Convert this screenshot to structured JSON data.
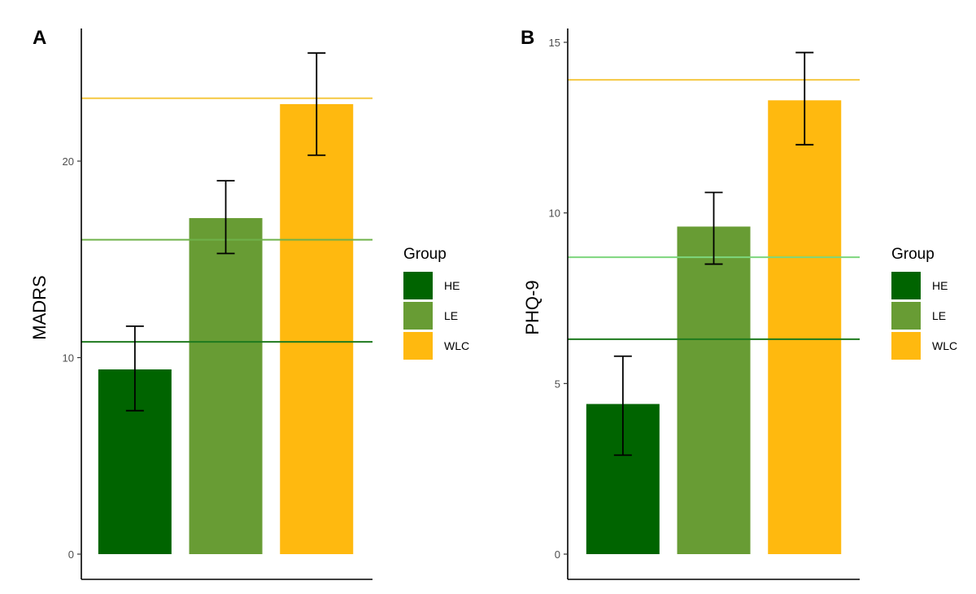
{
  "chart_data": [
    {
      "type": "bar",
      "panel": "A",
      "ylabel": "MADRS",
      "xlabel": "",
      "ylim": [
        0,
        27
      ],
      "yticks": [
        0,
        10,
        20
      ],
      "categories": [
        "HE",
        "LE",
        "WLC"
      ],
      "values": [
        9.4,
        17.1,
        22.9
      ],
      "error_low": [
        7.3,
        15.3,
        20.3
      ],
      "error_high": [
        11.6,
        19.0,
        25.5
      ],
      "reference_lines": [
        {
          "group": "HE",
          "value": 10.8
        },
        {
          "group": "LE",
          "value": 16.0
        },
        {
          "group": "WLC",
          "value": 23.2
        }
      ],
      "legend": {
        "title": "Group",
        "entries": [
          "HE",
          "LE",
          "WLC"
        ]
      },
      "grid": false
    },
    {
      "type": "bar",
      "panel": "B",
      "ylabel": "PHQ-9",
      "xlabel": "",
      "ylim": [
        0,
        15.4
      ],
      "yticks": [
        0,
        5,
        10,
        15
      ],
      "categories": [
        "HE",
        "LE",
        "WLC"
      ],
      "values": [
        4.4,
        9.6,
        13.3
      ],
      "error_low": [
        2.9,
        8.5,
        12.0
      ],
      "error_high": [
        5.8,
        10.6,
        14.7
      ],
      "reference_lines": [
        {
          "group": "HE",
          "value": 6.3
        },
        {
          "group": "LE",
          "value": 8.7
        },
        {
          "group": "WLC",
          "value": 13.9
        }
      ],
      "legend": {
        "title": "Group",
        "entries": [
          "HE",
          "LE",
          "WLC"
        ]
      },
      "grid": false
    }
  ],
  "colors": {
    "HE": "#006400",
    "LE": "#689c34",
    "WLC": "#ffb90f",
    "ref_HE": "#1e7a1e",
    "ref_LE": "#6fb24a",
    "ref_WLC": "#f5c842",
    "ref_LE_B": "#7dd67d"
  }
}
